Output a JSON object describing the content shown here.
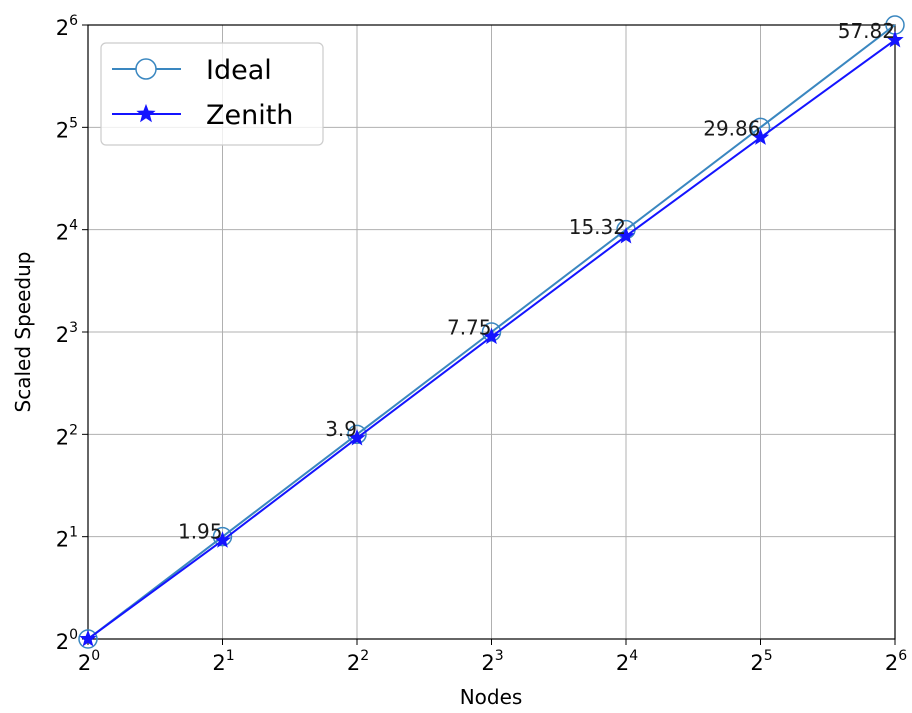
{
  "chart_data": {
    "type": "line",
    "xlabel": "Nodes",
    "ylabel": "Scaled Speedup",
    "scale": "log2",
    "grid": true,
    "legend_position": "top-left",
    "xlim": [
      1,
      64
    ],
    "ylim": [
      1,
      64
    ],
    "x": [
      1,
      2,
      4,
      8,
      16,
      32,
      64
    ],
    "xtick_base": "2",
    "xtick_exponents": [
      "0",
      "1",
      "2",
      "3",
      "4",
      "5",
      "6"
    ],
    "ytick_base": "2",
    "ytick_exponents": [
      "0",
      "1",
      "2",
      "3",
      "4",
      "5",
      "6"
    ],
    "series": [
      {
        "name": "Ideal",
        "values": [
          1,
          2,
          4,
          8,
          16,
          32,
          64
        ],
        "color": "#3a87c0",
        "marker": "open-circle"
      },
      {
        "name": "Zenith",
        "values": [
          1,
          1.95,
          3.9,
          7.75,
          15.32,
          29.86,
          57.82
        ],
        "color": "#1414ff",
        "marker": "star"
      }
    ],
    "data_labels": [
      "1.95",
      "3.9",
      "7.75",
      "15.32",
      "29.86",
      "57.82"
    ]
  }
}
